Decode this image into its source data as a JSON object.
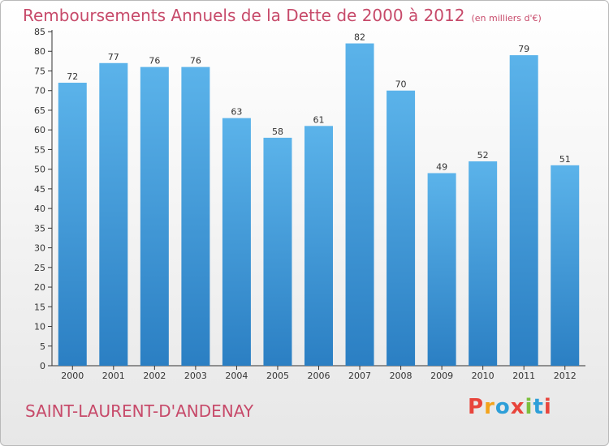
{
  "header": {
    "title": "Remboursements Annuels de la Dette de 2000 à 2012",
    "unit": "(en milliers d'€)"
  },
  "footer": {
    "place": "SAINT-LAURENT-D'ANDENAY",
    "brand": "Proxiti",
    "brand_colors": [
      "#e8453c",
      "#f3a31b",
      "#2e9fd8",
      "#e8453c",
      "#7cbf3c",
      "#2e9fd8",
      "#e8453c"
    ]
  },
  "colors": {
    "title": "#c74a6a",
    "bar_top": "#5bb3ea",
    "bar_bottom": "#2b7fc3",
    "axis": "#333333",
    "grid": "#dddddd"
  },
  "chart_data": {
    "type": "bar",
    "categories": [
      "2000",
      "2001",
      "2002",
      "2003",
      "2004",
      "2005",
      "2006",
      "2007",
      "2008",
      "2009",
      "2010",
      "2011",
      "2012"
    ],
    "values": [
      72,
      77,
      76,
      76,
      63,
      58,
      61,
      82,
      70,
      49,
      52,
      79,
      51
    ],
    "title": "Remboursements Annuels de la Dette de 2000 à 2012",
    "xlabel": "",
    "ylabel": "",
    "ylim": [
      0,
      85
    ],
    "yticks": [
      0,
      5,
      10,
      15,
      20,
      25,
      30,
      35,
      40,
      45,
      50,
      55,
      60,
      65,
      70,
      75,
      80,
      85
    ],
    "grid": false,
    "legend": "none"
  }
}
